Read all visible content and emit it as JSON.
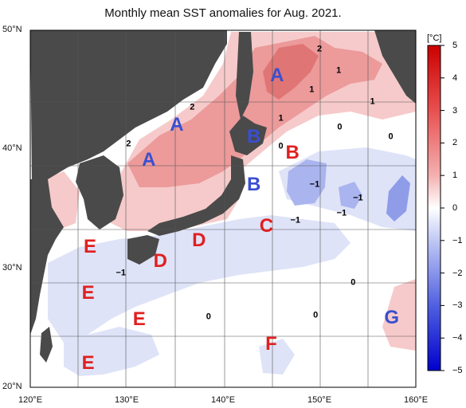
{
  "title": "Monthly mean SST anomalies for Aug. 2021.",
  "latitude_labels": [
    {
      "text": "50°N",
      "lat": 50
    },
    {
      "text": "40°N",
      "lat": 40
    },
    {
      "text": "30°N",
      "lat": 30
    },
    {
      "text": "20°N",
      "lat": 20
    }
  ],
  "longitude_labels": [
    {
      "text": "120°E",
      "lon": 120
    },
    {
      "text": "130°E",
      "lon": 130
    },
    {
      "text": "140°E",
      "lon": 140
    },
    {
      "text": "150°E",
      "lon": 150
    },
    {
      "text": "160°E",
      "lon": 160
    }
  ],
  "colorbar": {
    "unit": "[°C]",
    "ticks": [
      "5",
      "4",
      "3",
      "2",
      "1",
      "0",
      "−1",
      "−2",
      "−3",
      "−4",
      "−5"
    ],
    "warm_color": "#e03030",
    "cool_color": "#2030e0"
  },
  "regions": [
    {
      "label": "A",
      "lat": 46.2,
      "lon": 145.6,
      "color": "#3a4fd0"
    },
    {
      "label": "A",
      "lon": 135.2,
      "lat": 42.0,
      "color": "#3a4fd0"
    },
    {
      "label": "A",
      "lon": 132.3,
      "lat": 39.1,
      "color": "#3a4fd0"
    },
    {
      "label": "B",
      "lon": 143.2,
      "lat": 41.0,
      "color": "#3a4fd0"
    },
    {
      "label": "B",
      "lon": 143.2,
      "lat": 37.0,
      "color": "#3a4fd0"
    },
    {
      "label": "B",
      "lon": 147.2,
      "lat": 39.7,
      "color": "#e02020"
    },
    {
      "label": "C",
      "lon": 144.5,
      "lat": 33.5,
      "color": "#e02020"
    },
    {
      "label": "D",
      "lon": 137.5,
      "lat": 32.3,
      "color": "#e02020"
    },
    {
      "label": "D",
      "lon": 133.5,
      "lat": 30.6,
      "color": "#e02020"
    },
    {
      "label": "E",
      "lon": 126.2,
      "lat": 31.8,
      "color": "#e02020"
    },
    {
      "label": "E",
      "lon": 126.0,
      "lat": 27.9,
      "color": "#e02020"
    },
    {
      "label": "E",
      "lon": 131.3,
      "lat": 25.7,
      "color": "#e02020"
    },
    {
      "label": "E",
      "lon": 126.0,
      "lat": 22.0,
      "color": "#e02020"
    },
    {
      "label": "F",
      "lon": 145.0,
      "lat": 23.6,
      "color": "#e02020"
    },
    {
      "label": "G",
      "lon": 157.5,
      "lat": 25.8,
      "color": "#3a4fd0"
    }
  ],
  "contour_labels": [
    {
      "text": "2",
      "lon": 150.0,
      "lat": 48.4
    },
    {
      "text": "1",
      "lon": 152.0,
      "lat": 46.6
    },
    {
      "text": "1",
      "lon": 149.2,
      "lat": 45.0
    },
    {
      "text": "1",
      "lon": 155.5,
      "lat": 44.0
    },
    {
      "text": "1",
      "lon": 146.0,
      "lat": 42.6
    },
    {
      "text": "2",
      "lon": 136.8,
      "lat": 43.5
    },
    {
      "text": "2",
      "lon": 130.2,
      "lat": 40.4
    },
    {
      "text": "0",
      "lon": 152.1,
      "lat": 41.8
    },
    {
      "text": "0",
      "lon": 157.4,
      "lat": 41.0
    },
    {
      "text": "0",
      "lon": 146.0,
      "lat": 40.2
    },
    {
      "text": "−1",
      "lon": 149.5,
      "lat": 37.0
    },
    {
      "text": "−1",
      "lon": 154.0,
      "lat": 35.9
    },
    {
      "text": "−1",
      "lon": 152.3,
      "lat": 34.6
    },
    {
      "text": "−1",
      "lon": 147.5,
      "lat": 34.0
    },
    {
      "text": "−1",
      "lon": 129.4,
      "lat": 29.6
    },
    {
      "text": "0",
      "lon": 153.5,
      "lat": 28.8
    },
    {
      "text": "0",
      "lon": 138.5,
      "lat": 25.9
    },
    {
      "text": "0",
      "lon": 149.6,
      "lat": 26.0
    }
  ]
}
